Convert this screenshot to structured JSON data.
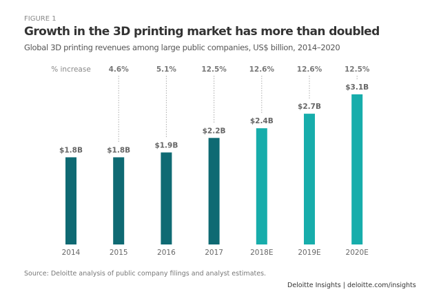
{
  "figure_label": "FIGURE 1",
  "source": "Source: Deloitte analysis of public company filings and analyst estimates.",
  "brand": "Deloitte Insights | deloitte.com/insights",
  "chart_data": {
    "type": "bar",
    "title": "Growth in the 3D printing market has more than doubled",
    "subtitle": "Global 3D printing revenues among large public companies, US$ billion, 2014–2020",
    "increase_header": "% increase",
    "categories": [
      "2014",
      "2015",
      "2016",
      "2017",
      "2018E",
      "2019E",
      "2020E"
    ],
    "values": [
      1.8,
      1.8,
      1.9,
      2.2,
      2.4,
      2.7,
      3.1
    ],
    "data_labels": [
      "$1.8B",
      "$1.8B",
      "$1.9B",
      "$2.2B",
      "$2.4B",
      "$2.7B",
      "$3.1B"
    ],
    "percent_increase": [
      null,
      "4.6%",
      "5.1%",
      "12.5%",
      "12.6%",
      "12.6%",
      "12.5%"
    ],
    "estimated": [
      false,
      false,
      false,
      false,
      true,
      true,
      true
    ],
    "colors": {
      "actual": "#0f6a73",
      "estimate": "#17adab"
    },
    "ylim": [
      0,
      3.1
    ],
    "grid": false
  }
}
